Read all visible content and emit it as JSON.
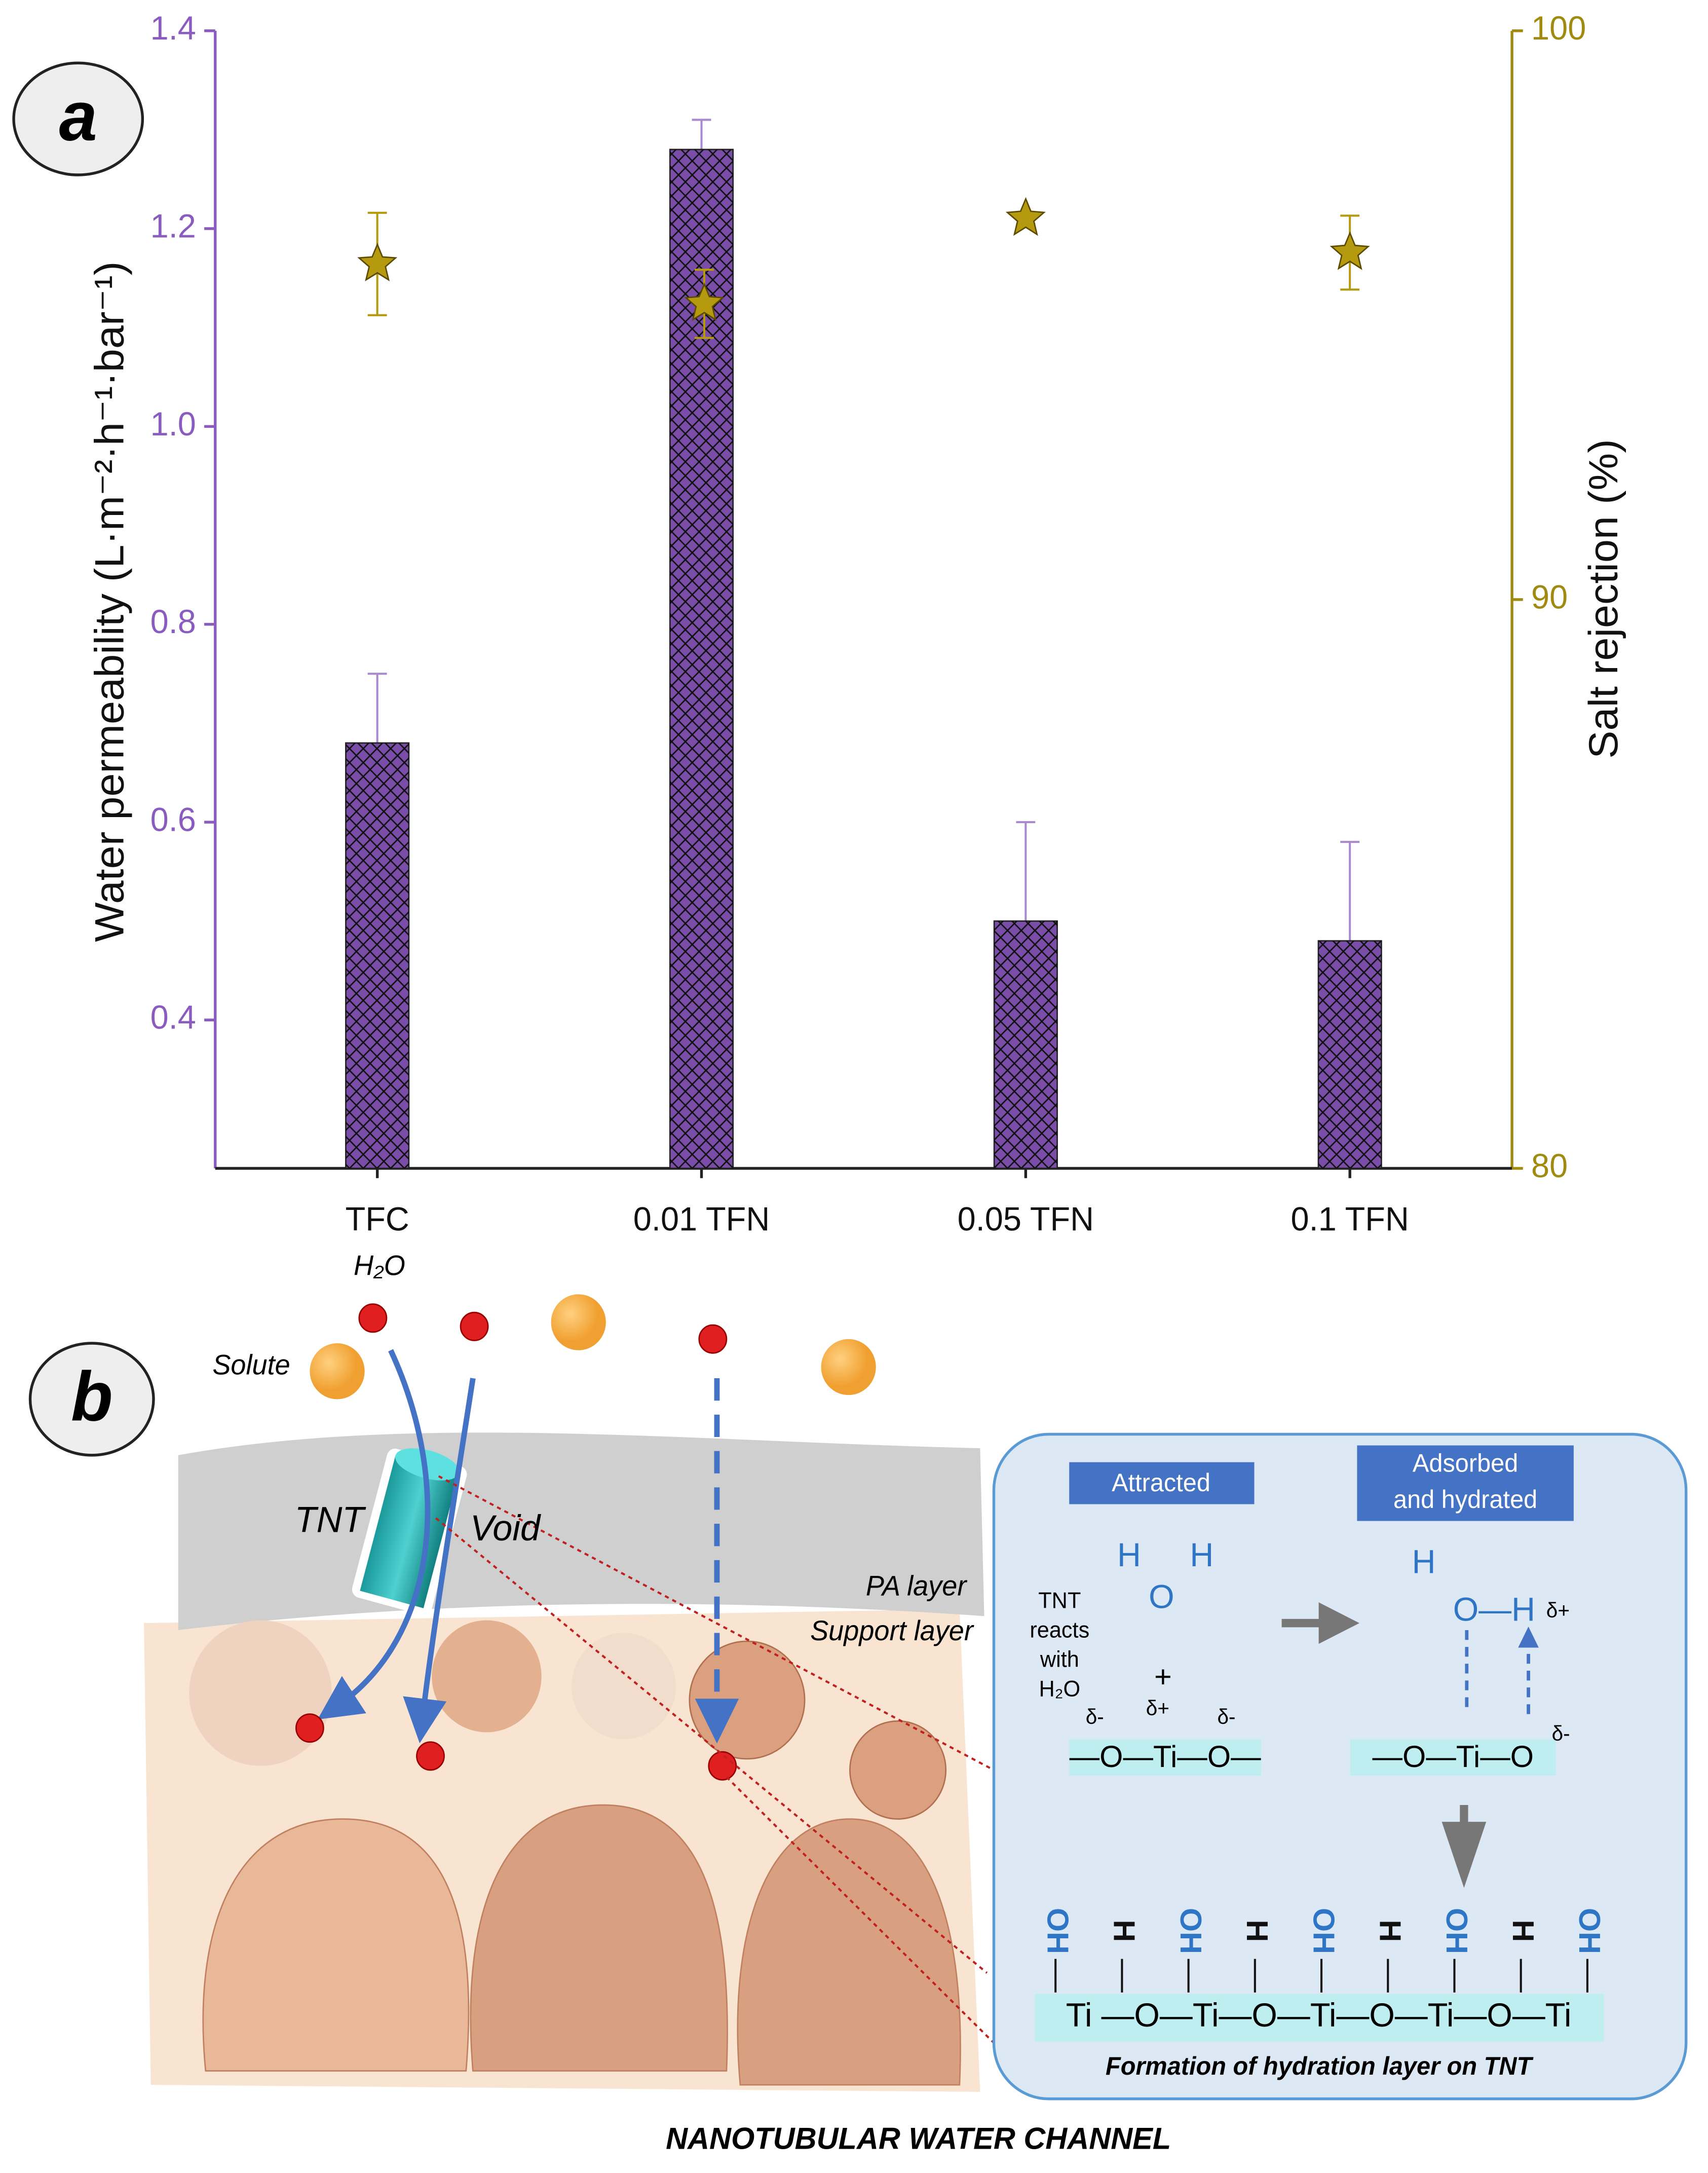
{
  "panel_labels": [
    "a",
    "b"
  ],
  "chart_data": {
    "type": "bar",
    "categories": [
      "TFC",
      "0.01 TFN",
      "0.05 TFN",
      "0.1 TFN"
    ],
    "ylabel": "Water permeability  (L·m⁻²·h⁻¹·bar⁻¹)",
    "y2label": "Salt rejection (%)",
    "ylim": [
      0.25,
      1.4
    ],
    "yticks": [
      0.4,
      0.6,
      0.8,
      {
        "value": 1.0,
        "label": "1.0"
      },
      1.2,
      1.4
    ],
    "y2lim": [
      80,
      100
    ],
    "y2ticks": [
      80,
      90,
      100
    ],
    "ycolor": "#8a5cc0",
    "y2color": "#a08a10",
    "series": [
      {
        "type": "bar",
        "color": "#7a4ea8",
        "hatch": "crosshatch",
        "values": [
          0.68,
          1.28,
          0.5,
          0.48
        ],
        "errors": [
          0.07,
          0.03,
          0.1,
          0.1
        ]
      },
      {
        "type": "star",
        "axis": "y2",
        "color": "#b59a10",
        "values": [
          95.9,
          95.2,
          96.7,
          96.1
        ],
        "errors": [
          0.9,
          0.6,
          0.1,
          0.65
        ]
      }
    ]
  },
  "diagram": {
    "water": "H₂O",
    "solute": "Solute",
    "tnt": "TNT",
    "void": "Void",
    "pa_layer": "PA layer",
    "support_layer": "Support layer",
    "attracted": "Attracted",
    "adsorbed": [
      "Adsorbed",
      "and hydrated"
    ],
    "reacts": [
      "TNT",
      "reacts",
      "with",
      "H₂O"
    ],
    "left_chem": {
      "h1": "H",
      "o": "O",
      "h2": "H",
      "plus": "+",
      "d1": "δ-",
      "d2": "δ+",
      "d3": "δ-",
      "chain": "—O—Ti—O—"
    },
    "right_chem": {
      "h": "H",
      "oh": "O—H",
      "dplus": "δ+",
      "chain": "—O—Ti—O",
      "dminus": "δ-"
    },
    "hydration_groups": [
      "OH",
      "H",
      "OH",
      "H",
      "OH",
      "H",
      "OH",
      "H",
      "OH"
    ],
    "hydration_chain": "Ti —O—Ti—O—Ti—O—Ti—O—Ti",
    "hydration_caption": "Formation of hydration layer on TNT",
    "caption": "NANOTUBULAR WATER CHANNEL"
  }
}
